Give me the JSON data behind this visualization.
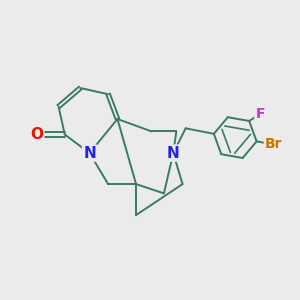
{
  "background_color": "#ebebeb",
  "bond_color": "#3a7a6a",
  "atom_colors": {
    "O": "#ee1100",
    "N": "#2222ee",
    "Br": "#cc7700",
    "F": "#cc33cc"
  },
  "figsize": [
    3.0,
    3.0
  ],
  "dpi": 100
}
